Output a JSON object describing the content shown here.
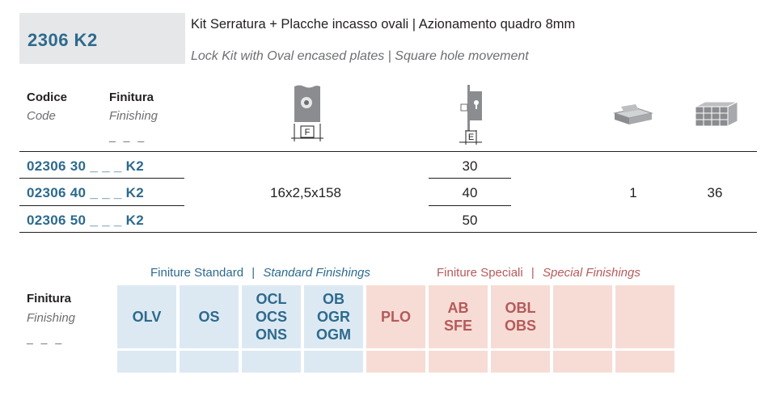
{
  "header": {
    "code": "2306 K2",
    "desc_it": "Kit Serratura + Placche incasso ovali | Azionamento quadro 8mm",
    "desc_en": "Lock Kit with Oval encased plates | Square hole movement"
  },
  "table": {
    "col_code_it": "Codice",
    "col_code_en": "Code",
    "col_fin_it": "Finitura",
    "col_fin_en": "Finishing",
    "col_fin_dash": "_ _ _",
    "icon_f_label": "F",
    "icon_e_label": "E",
    "rows": [
      {
        "code": "02306 30 _ _ _ K2",
        "e": "30"
      },
      {
        "code": "02306 40 _ _ _ K2",
        "e": "40"
      },
      {
        "code": "02306 50 _ _ _ K2",
        "e": "50"
      }
    ],
    "f_value": "16x2,5x158",
    "box_qty": "1",
    "carton_qty": "36"
  },
  "finishes": {
    "label_it": "Finitura",
    "label_en": "Finishing",
    "label_dash": "_ _ _",
    "std_it": "Finiture Standard",
    "std_sep": "|",
    "std_en": "Standard Finishings",
    "spc_it": "Finiture Speciali",
    "spc_sep": "|",
    "spc_en": "Special Finishings",
    "standard": [
      [
        "OLV"
      ],
      [
        "OS"
      ],
      [
        "OCL",
        "OCS",
        "ONS"
      ],
      [
        "OB",
        "OGR",
        "OGM"
      ]
    ],
    "special": [
      [
        "PLO"
      ],
      [
        "AB",
        "SFE"
      ],
      [
        "OBL",
        "OBS"
      ],
      [],
      []
    ]
  },
  "colors": {
    "accent_blue": "#2d6a8e",
    "accent_red": "#b55a5a",
    "std_bg": "#dde9f2",
    "spc_bg": "#f6dcd5"
  }
}
